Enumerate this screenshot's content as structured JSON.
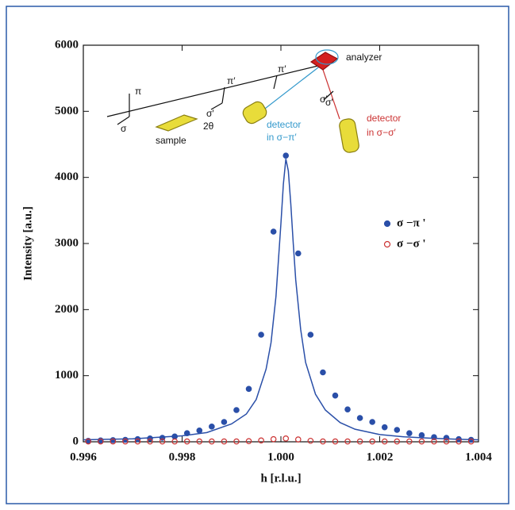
{
  "chart_data": {
    "type": "scatter",
    "xlabel": "h [r.l.u.]",
    "ylabel": "Intensity [a.u.]",
    "xlim": [
      0.996,
      1.004
    ],
    "ylim": [
      0,
      6000
    ],
    "xticks": [
      0.996,
      0.998,
      {
        "value": 1,
        "label": "1.000"
      },
      1.002,
      1.004
    ],
    "yticks": [
      0,
      1000,
      2000,
      3000,
      4000,
      5000,
      6000
    ],
    "legend": "right",
    "series": [
      {
        "name": "σ −π '",
        "color": "#2a4fa8",
        "marker": "filled",
        "x": [
          0.9961,
          0.99635,
          0.9966,
          0.99685,
          0.9971,
          0.99735,
          0.9976,
          0.99785,
          0.9981,
          0.99835,
          0.9986,
          0.99885,
          0.9991,
          0.99935,
          0.9996,
          0.99985,
          1.0001,
          1.00035,
          1.0006,
          1.00085,
          1.0011,
          1.00135,
          1.0016,
          1.00185,
          1.0021,
          1.00235,
          1.0026,
          1.00285,
          1.0031,
          1.00335,
          1.0036,
          1.00385
        ],
        "values": [
          15,
          20,
          25,
          30,
          40,
          50,
          60,
          80,
          130,
          170,
          230,
          300,
          480,
          800,
          1620,
          3180,
          4330,
          2850,
          1620,
          1050,
          700,
          490,
          360,
          300,
          220,
          180,
          130,
          100,
          70,
          60,
          40,
          30
        ]
      },
      {
        "name": "σ −σ '",
        "color": "#cc3333",
        "marker": "open",
        "x": [
          0.9961,
          0.99635,
          0.9966,
          0.99685,
          0.9971,
          0.99735,
          0.9976,
          0.99785,
          0.9981,
          0.99835,
          0.9986,
          0.99885,
          0.9991,
          0.99935,
          0.9996,
          0.99985,
          1.0001,
          1.00035,
          1.0006,
          1.00085,
          1.0011,
          1.00135,
          1.0016,
          1.00185,
          1.0021,
          1.00235,
          1.0026,
          1.00285,
          1.0031,
          1.00335,
          1.0036,
          1.00385
        ],
        "values": [
          5,
          5,
          5,
          5,
          5,
          5,
          5,
          5,
          5,
          5,
          5,
          5,
          5,
          10,
          20,
          40,
          50,
          35,
          15,
          5,
          5,
          5,
          5,
          5,
          5,
          5,
          5,
          5,
          5,
          5,
          5,
          5
        ]
      }
    ],
    "fit": {
      "color": "#2a4fa8",
      "x": [
        0.996,
        0.997,
        0.998,
        0.9985,
        0.999,
        0.9993,
        0.9995,
        0.9997,
        0.9998,
        0.9999,
        1.0,
        1.00005,
        1.0001,
        1.00015,
        1.0002,
        1.00025,
        1.0003,
        1.0004,
        1.0005,
        1.0007,
        1.0009,
        1.0012,
        1.0015,
        1.002,
        1.0025,
        1.003,
        1.0035,
        1.004
      ],
      "values": [
        30,
        45,
        90,
        140,
        270,
        420,
        640,
        1100,
        1500,
        2200,
        3300,
        3900,
        4280,
        4100,
        3600,
        3000,
        2450,
        1700,
        1200,
        720,
        480,
        290,
        190,
        110,
        75,
        55,
        40,
        30
      ]
    },
    "annotations": [
      {
        "text": "analyzer",
        "color": "#111111"
      },
      {
        "text": "sample",
        "color": "#111111"
      },
      {
        "text": "2θ",
        "color": "#111111"
      },
      {
        "text": "detector",
        "color": "#3399cc"
      },
      {
        "text": "in σ−π′",
        "color": "#3399cc"
      },
      {
        "text": "detector",
        "color": "#cc3333"
      },
      {
        "text": "in σ−σ′",
        "color": "#cc3333"
      },
      {
        "text": "π",
        "color": "#111111"
      },
      {
        "text": "σ",
        "color": "#111111"
      },
      {
        "text": "π′",
        "color": "#111111"
      },
      {
        "text": "σ′",
        "color": "#111111"
      },
      {
        "text": "π′",
        "color": "#111111"
      },
      {
        "text": "σ′",
        "color": "#111111"
      },
      {
        "text": "σ′",
        "color": "#111111"
      }
    ]
  }
}
